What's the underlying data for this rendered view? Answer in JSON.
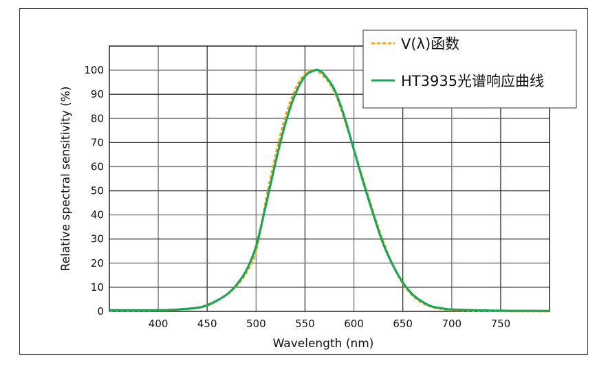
{
  "chart_data": {
    "type": "line",
    "title": "",
    "xlabel": "Wavelength (nm)",
    "ylabel": "Relative spectral sensitivity (%)",
    "xlim": [
      350,
      800
    ],
    "ylim": [
      0,
      110
    ],
    "xticks": [
      400,
      450,
      500,
      550,
      600,
      650,
      700,
      750
    ],
    "yticks": [
      0,
      10,
      20,
      30,
      40,
      50,
      60,
      70,
      80,
      90,
      100
    ],
    "grid": true,
    "legend_position": "top-right",
    "series": [
      {
        "name": "V(λ)函数",
        "color": "#f5a623",
        "style": "dashed",
        "x": [
          350,
          400,
          420,
          440,
          450,
          460,
          470,
          480,
          490,
          500,
          510,
          520,
          530,
          540,
          550,
          560,
          570,
          580,
          590,
          600,
          610,
          620,
          630,
          640,
          650,
          660,
          670,
          680,
          690,
          700,
          750,
          800
        ],
        "y": [
          0.3,
          0.4,
          0.7,
          1.5,
          2.8,
          4.5,
          7,
          10.5,
          16,
          25,
          46,
          65,
          81,
          92,
          98.5,
          100,
          97,
          91,
          80,
          67,
          54,
          41,
          29,
          19,
          11.5,
          6.5,
          3.5,
          1.8,
          1,
          0.5,
          0.1,
          0
        ]
      },
      {
        "name": "HT3935光谱响应曲线",
        "color": "#1aa655",
        "style": "solid",
        "x": [
          350,
          400,
          420,
          440,
          450,
          460,
          470,
          480,
          490,
          500,
          510,
          520,
          530,
          540,
          550,
          560,
          565,
          570,
          580,
          590,
          600,
          610,
          620,
          630,
          640,
          650,
          660,
          670,
          680,
          690,
          700,
          750,
          800
        ],
        "y": [
          0.5,
          0.5,
          0.8,
          1.5,
          2.5,
          4.5,
          7,
          11,
          17,
          27,
          44,
          62,
          78,
          90,
          97.5,
          100,
          99.8,
          98,
          92,
          81,
          67,
          53,
          40,
          28,
          19,
          12,
          7,
          4,
          2,
          1.3,
          0.8,
          0.3,
          0.2
        ]
      }
    ]
  }
}
